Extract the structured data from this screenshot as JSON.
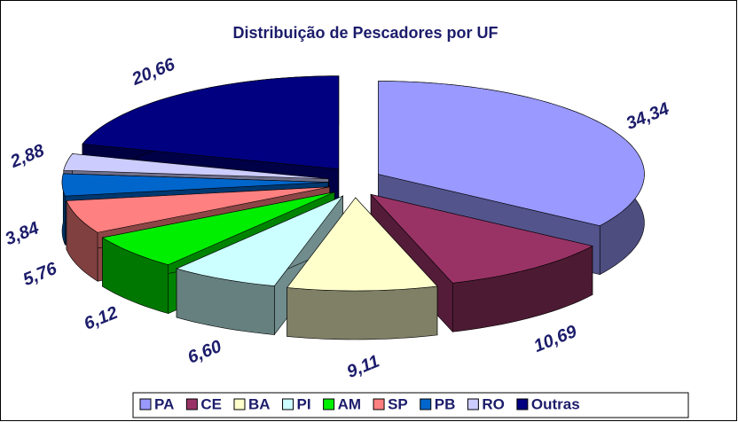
{
  "chart_data": {
    "type": "pie3d",
    "title": "Distribuição de Pescadores por UF",
    "categories": [
      "PA",
      "CE",
      "BA",
      "PI",
      "AM",
      "SP",
      "PB",
      "RO",
      "Outras"
    ],
    "values": [
      34.34,
      10.69,
      9.11,
      6.6,
      6.12,
      5.76,
      3.84,
      2.88,
      20.66
    ],
    "value_labels": [
      "34,34",
      "10,69",
      "9,11",
      "6,60",
      "6,12",
      "5,76",
      "3,84",
      "2,88",
      "20,66"
    ],
    "colors": [
      "#9999ff",
      "#993366",
      "#ffffcc",
      "#ccffff",
      "#00ee00",
      "#ff8080",
      "#0066cc",
      "#ccccff",
      "#000080"
    ],
    "legend": "bottom"
  }
}
